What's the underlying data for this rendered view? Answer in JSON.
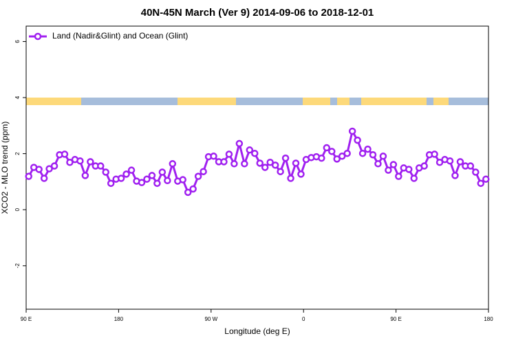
{
  "chart_data": {
    "type": "line",
    "title": "40N-45N March (Ver 9)   2014-09-06 to 2018-12-01",
    "x_label": "Longitude (deg E)",
    "y_label": "XCO2 - MLO trend (ppm)",
    "xlim": [
      90,
      540
    ],
    "ylim": [
      -3.55,
      6.55
    ],
    "xticks": [
      {
        "value": 90,
        "label": "90 E"
      },
      180,
      {
        "value": 270,
        "label": "90 W"
      },
      {
        "value": 360,
        "label": "0"
      },
      {
        "value": 450,
        "label": "90 E"
      },
      {
        "value": 540,
        "label": "180"
      }
    ],
    "yticks": [
      -2,
      0,
      2,
      4,
      6
    ],
    "legend": "top-left",
    "x": [
      92.5,
      97.5,
      102.5,
      107.5,
      112.5,
      117.5,
      122.5,
      127.5,
      132.5,
      137.5,
      142.5,
      147.5,
      152.5,
      157.5,
      162.5,
      167.5,
      172.5,
      177.5,
      182.5,
      187.5,
      192.5,
      197.5,
      202.5,
      207.5,
      212.5,
      217.5,
      222.5,
      227.5,
      232.5,
      237.5,
      242.5,
      247.5,
      252.5,
      257.5,
      262.5,
      267.5,
      272.5,
      277.5,
      282.5,
      287.5,
      292.5,
      297.5,
      302.5,
      307.5,
      312.5,
      317.5,
      322.5,
      327.5,
      332.5,
      337.5,
      342.5,
      347.5,
      352.5,
      357.5,
      362.5,
      367.5,
      372.5,
      377.5,
      382.5,
      387.5,
      392.5,
      397.5,
      402.5,
      407.5,
      412.5,
      417.5,
      422.5,
      427.5,
      432.5,
      437.5,
      442.5,
      447.5,
      452.5,
      457.5,
      462.5,
      467.5,
      472.5,
      477.5,
      482.5,
      487.5,
      492.5,
      497.5,
      502.5,
      507.5,
      512.5,
      517.5,
      522.5,
      527.5,
      532.5,
      537.5
    ],
    "series": [
      {
        "name": "Land (Nadir&Glint) and Ocean (Glint)",
        "color": "#a020f0",
        "values": [
          1.19,
          1.51,
          1.44,
          1.12,
          1.46,
          1.56,
          1.96,
          1.98,
          1.69,
          1.79,
          1.74,
          1.22,
          1.71,
          1.56,
          1.56,
          1.34,
          0.94,
          1.09,
          1.12,
          1.27,
          1.41,
          1.02,
          0.97,
          1.09,
          1.22,
          0.94,
          1.34,
          1.04,
          1.64,
          1.02,
          1.07,
          0.62,
          0.74,
          1.19,
          1.36,
          1.89,
          1.91,
          1.71,
          1.71,
          1.98,
          1.64,
          2.36,
          1.64,
          2.13,
          2.01,
          1.66,
          1.51,
          1.69,
          1.59,
          1.36,
          1.84,
          1.12,
          1.66,
          1.27,
          1.79,
          1.86,
          1.89,
          1.84,
          2.21,
          2.08,
          1.81,
          1.91,
          2.01,
          2.8,
          2.48,
          2.01,
          2.16,
          1.96,
          1.64,
          1.91,
          1.41,
          1.61,
          1.19,
          1.49,
          1.44,
          1.12,
          1.49,
          1.56,
          1.96,
          1.98,
          1.69,
          1.79,
          1.74,
          1.22,
          1.71,
          1.56,
          1.56,
          1.34,
          0.94,
          1.09
        ]
      }
    ]
  }
}
